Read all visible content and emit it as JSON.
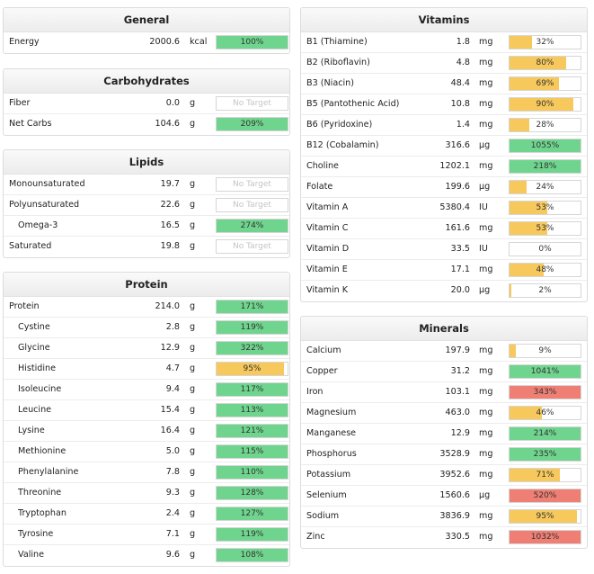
{
  "general": {
    "title": "General",
    "rows": [
      {
        "name": "Energy",
        "amount": "2000.6",
        "unit": "kcal",
        "percent": "100%",
        "fraction": 1.0,
        "color": "green",
        "indent": false
      }
    ]
  },
  "carbohydrates": {
    "title": "Carbohydrates",
    "rows": [
      {
        "name": "Fiber",
        "amount": "0.0",
        "unit": "g",
        "percent": "No Target",
        "fraction": 0,
        "color": "none",
        "indent": false
      },
      {
        "name": "Net Carbs",
        "amount": "104.6",
        "unit": "g",
        "percent": "209%",
        "fraction": 1.0,
        "color": "green",
        "indent": false
      }
    ]
  },
  "lipids": {
    "title": "Lipids",
    "rows": [
      {
        "name": "Monounsaturated",
        "amount": "19.7",
        "unit": "g",
        "percent": "No Target",
        "fraction": 0,
        "color": "none",
        "indent": false
      },
      {
        "name": "Polyunsaturated",
        "amount": "22.6",
        "unit": "g",
        "percent": "No Target",
        "fraction": 0,
        "color": "none",
        "indent": false
      },
      {
        "name": "Omega-3",
        "amount": "16.5",
        "unit": "g",
        "percent": "274%",
        "fraction": 1.0,
        "color": "green",
        "indent": true
      },
      {
        "name": "Saturated",
        "amount": "19.8",
        "unit": "g",
        "percent": "No Target",
        "fraction": 0,
        "color": "none",
        "indent": false
      }
    ]
  },
  "protein": {
    "title": "Protein",
    "rows": [
      {
        "name": "Protein",
        "amount": "214.0",
        "unit": "g",
        "percent": "171%",
        "fraction": 1.0,
        "color": "green",
        "indent": false
      },
      {
        "name": "Cystine",
        "amount": "2.8",
        "unit": "g",
        "percent": "119%",
        "fraction": 1.0,
        "color": "green",
        "indent": true
      },
      {
        "name": "Glycine",
        "amount": "12.9",
        "unit": "g",
        "percent": "322%",
        "fraction": 1.0,
        "color": "green",
        "indent": true
      },
      {
        "name": "Histidine",
        "amount": "4.7",
        "unit": "g",
        "percent": "95%",
        "fraction": 0.95,
        "color": "orange",
        "indent": true
      },
      {
        "name": "Isoleucine",
        "amount": "9.4",
        "unit": "g",
        "percent": "117%",
        "fraction": 1.0,
        "color": "green",
        "indent": true
      },
      {
        "name": "Leucine",
        "amount": "15.4",
        "unit": "g",
        "percent": "113%",
        "fraction": 1.0,
        "color": "green",
        "indent": true
      },
      {
        "name": "Lysine",
        "amount": "16.4",
        "unit": "g",
        "percent": "121%",
        "fraction": 1.0,
        "color": "green",
        "indent": true
      },
      {
        "name": "Methionine",
        "amount": "5.0",
        "unit": "g",
        "percent": "115%",
        "fraction": 1.0,
        "color": "green",
        "indent": true
      },
      {
        "name": "Phenylalanine",
        "amount": "7.8",
        "unit": "g",
        "percent": "110%",
        "fraction": 1.0,
        "color": "green",
        "indent": true
      },
      {
        "name": "Threonine",
        "amount": "9.3",
        "unit": "g",
        "percent": "128%",
        "fraction": 1.0,
        "color": "green",
        "indent": true
      },
      {
        "name": "Tryptophan",
        "amount": "2.4",
        "unit": "g",
        "percent": "127%",
        "fraction": 1.0,
        "color": "green",
        "indent": true
      },
      {
        "name": "Tyrosine",
        "amount": "7.1",
        "unit": "g",
        "percent": "119%",
        "fraction": 1.0,
        "color": "green",
        "indent": true
      },
      {
        "name": "Valine",
        "amount": "9.6",
        "unit": "g",
        "percent": "108%",
        "fraction": 1.0,
        "color": "green",
        "indent": true
      }
    ]
  },
  "vitamins": {
    "title": "Vitamins",
    "rows": [
      {
        "name": "B1 (Thiamine)",
        "amount": "1.8",
        "unit": "mg",
        "percent": "32%",
        "fraction": 0.32,
        "color": "orange",
        "indent": false
      },
      {
        "name": "B2 (Riboflavin)",
        "amount": "4.8",
        "unit": "mg",
        "percent": "80%",
        "fraction": 0.8,
        "color": "orange",
        "indent": false
      },
      {
        "name": "B3 (Niacin)",
        "amount": "48.4",
        "unit": "mg",
        "percent": "69%",
        "fraction": 0.69,
        "color": "orange",
        "indent": false
      },
      {
        "name": "B5 (Pantothenic Acid)",
        "amount": "10.8",
        "unit": "mg",
        "percent": "90%",
        "fraction": 0.9,
        "color": "orange",
        "indent": false
      },
      {
        "name": "B6 (Pyridoxine)",
        "amount": "1.4",
        "unit": "mg",
        "percent": "28%",
        "fraction": 0.28,
        "color": "orange",
        "indent": false
      },
      {
        "name": "B12 (Cobalamin)",
        "amount": "316.6",
        "unit": "µg",
        "percent": "1055%",
        "fraction": 1.0,
        "color": "green",
        "indent": false
      },
      {
        "name": "Choline",
        "amount": "1202.1",
        "unit": "mg",
        "percent": "218%",
        "fraction": 1.0,
        "color": "green",
        "indent": false
      },
      {
        "name": "Folate",
        "amount": "199.6",
        "unit": "µg",
        "percent": "24%",
        "fraction": 0.24,
        "color": "orange",
        "indent": false
      },
      {
        "name": "Vitamin A",
        "amount": "5380.4",
        "unit": "IU",
        "percent": "53%",
        "fraction": 0.53,
        "color": "orange",
        "indent": false
      },
      {
        "name": "Vitamin C",
        "amount": "161.6",
        "unit": "mg",
        "percent": "53%",
        "fraction": 0.53,
        "color": "orange",
        "indent": false
      },
      {
        "name": "Vitamin D",
        "amount": "33.5",
        "unit": "IU",
        "percent": "0%",
        "fraction": 0,
        "color": "orange",
        "indent": false
      },
      {
        "name": "Vitamin E",
        "amount": "17.1",
        "unit": "mg",
        "percent": "48%",
        "fraction": 0.48,
        "color": "orange",
        "indent": false
      },
      {
        "name": "Vitamin K",
        "amount": "20.0",
        "unit": "µg",
        "percent": "2%",
        "fraction": 0.02,
        "color": "orange",
        "indent": false
      }
    ]
  },
  "minerals": {
    "title": "Minerals",
    "rows": [
      {
        "name": "Calcium",
        "amount": "197.9",
        "unit": "mg",
        "percent": "9%",
        "fraction": 0.09,
        "color": "orange",
        "indent": false
      },
      {
        "name": "Copper",
        "amount": "31.2",
        "unit": "mg",
        "percent": "1041%",
        "fraction": 1.0,
        "color": "green",
        "indent": false
      },
      {
        "name": "Iron",
        "amount": "103.1",
        "unit": "mg",
        "percent": "343%",
        "fraction": 1.0,
        "color": "red",
        "indent": false
      },
      {
        "name": "Magnesium",
        "amount": "463.0",
        "unit": "mg",
        "percent": "46%",
        "fraction": 0.46,
        "color": "orange",
        "indent": false
      },
      {
        "name": "Manganese",
        "amount": "12.9",
        "unit": "mg",
        "percent": "214%",
        "fraction": 1.0,
        "color": "green",
        "indent": false
      },
      {
        "name": "Phosphorus",
        "amount": "3528.9",
        "unit": "mg",
        "percent": "235%",
        "fraction": 1.0,
        "color": "green",
        "indent": false
      },
      {
        "name": "Potassium",
        "amount": "3952.6",
        "unit": "mg",
        "percent": "71%",
        "fraction": 0.71,
        "color": "orange",
        "indent": false
      },
      {
        "name": "Selenium",
        "amount": "1560.6",
        "unit": "µg",
        "percent": "520%",
        "fraction": 1.0,
        "color": "red",
        "indent": false
      },
      {
        "name": "Sodium",
        "amount": "3836.9",
        "unit": "mg",
        "percent": "95%",
        "fraction": 0.95,
        "color": "orange",
        "indent": false
      },
      {
        "name": "Zinc",
        "amount": "330.5",
        "unit": "mg",
        "percent": "1032%",
        "fraction": 1.0,
        "color": "red",
        "indent": false
      }
    ]
  }
}
